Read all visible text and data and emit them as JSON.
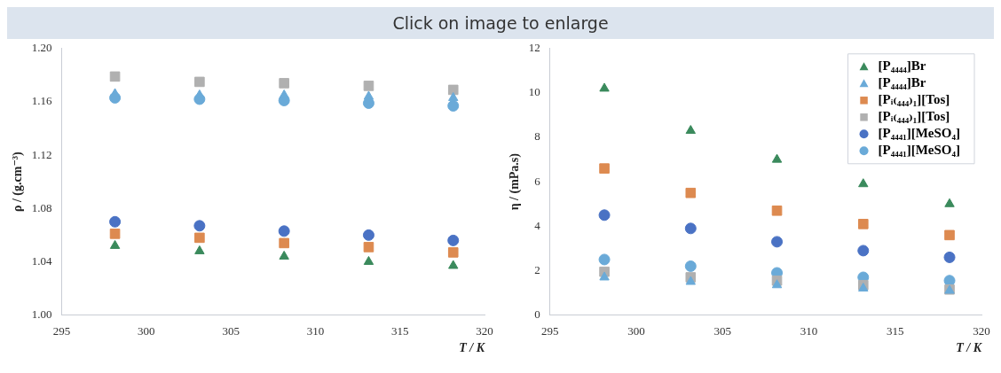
{
  "chart_data": [
    {
      "type": "scatter",
      "annotations": [
        "Click on image to enlarge"
      ],
      "xlabel": "T / K",
      "ylabel": "ρ / (g.cm⁻³)",
      "x": [
        298.15,
        303.15,
        308.15,
        313.15,
        318.15
      ],
      "xlim": [
        295,
        320
      ],
      "xticks": [
        295,
        300,
        305,
        310,
        315,
        320
      ],
      "ylim": [
        1.0,
        1.2
      ],
      "yticks": [
        {
          "value": 1.0,
          "label": "1.00"
        },
        {
          "value": 1.04,
          "label": "1.04"
        },
        {
          "value": 1.08,
          "label": "1.08"
        },
        {
          "value": 1.12,
          "label": "1.12"
        },
        {
          "value": 1.16,
          "label": "1.16"
        },
        {
          "value": 1.2,
          "label": "1.20"
        }
      ],
      "grid": false,
      "legend": false,
      "series": [
        {
          "color": "#3a8a5c",
          "marker": "triangle",
          "values": [
            1.052,
            1.048,
            1.044,
            1.04,
            1.037
          ]
        },
        {
          "color": "#6aaad8",
          "marker": "triangle",
          "values": [
            1.166,
            1.165,
            1.165,
            1.164,
            1.163
          ]
        },
        {
          "color": "#dd8a50",
          "marker": "square",
          "values": [
            1.061,
            1.058,
            1.054,
            1.051,
            1.047
          ]
        },
        {
          "color": "#b0b0b0",
          "marker": "square",
          "values": [
            1.179,
            1.175,
            1.174,
            1.172,
            1.169
          ]
        },
        {
          "color": "#4a72c4",
          "marker": "circle",
          "values": [
            1.07,
            1.067,
            1.063,
            1.06,
            1.056
          ]
        },
        {
          "color": "#6aaad8",
          "marker": "circle",
          "values": [
            1.163,
            1.162,
            1.161,
            1.159,
            1.157
          ]
        }
      ]
    },
    {
      "type": "scatter",
      "xlabel": "T / K",
      "ylabel": "η / (mPa.s)",
      "x": [
        298.15,
        303.15,
        308.15,
        313.15,
        318.15
      ],
      "xlim": [
        295,
        320
      ],
      "xticks": [
        295,
        300,
        305,
        310,
        315,
        320
      ],
      "ylim": [
        0,
        12
      ],
      "yticks": [
        0,
        2,
        4,
        6,
        8,
        10,
        12
      ],
      "grid": false,
      "legend": "top right",
      "series": [
        {
          "name": "[P₄₄₄₄]Br",
          "color": "#3a8a5c",
          "marker": "triangle",
          "values": [
            10.2,
            8.3,
            7.0,
            5.9,
            5.0
          ]
        },
        {
          "name": "[P₄₄₄₄]Br",
          "color": "#6aaad8",
          "marker": "triangle",
          "values": [
            1.7,
            1.5,
            1.35,
            1.2,
            1.1
          ]
        },
        {
          "name": "[Pᵢ₍₄₄₄₎₁][Tos]",
          "color": "#dd8a50",
          "marker": "square",
          "values": [
            6.6,
            5.5,
            4.7,
            4.1,
            3.6
          ]
        },
        {
          "name": "[Pᵢ₍₄₄₄₎₁][Tos]",
          "color": "#b0b0b0",
          "marker": "square",
          "values": [
            1.95,
            1.7,
            1.55,
            1.35,
            1.15
          ]
        },
        {
          "name": "[P₄₄₄₁][MeSO₄]",
          "color": "#4a72c4",
          "marker": "circle",
          "values": [
            4.5,
            3.9,
            3.3,
            2.9,
            2.6
          ]
        },
        {
          "name": "[P₄₄₄₁][MeSO₄]",
          "color": "#6aaad8",
          "marker": "circle",
          "values": [
            2.5,
            2.2,
            1.9,
            1.7,
            1.55
          ]
        }
      ]
    }
  ]
}
